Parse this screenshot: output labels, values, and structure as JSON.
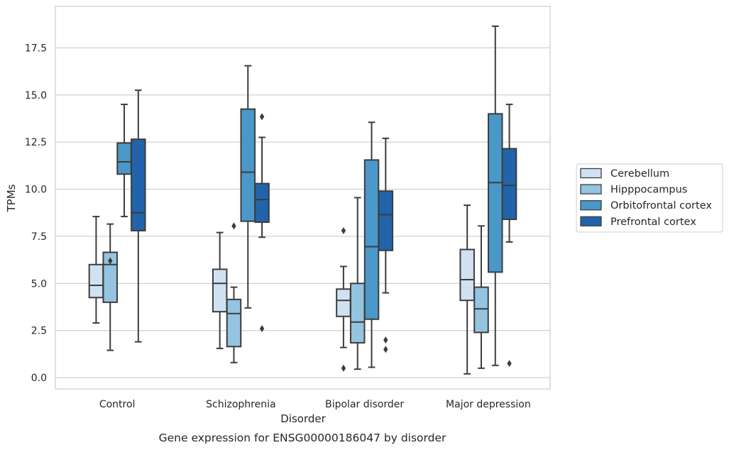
{
  "caption": "Gene expression for ENSG00000186047 by disorder",
  "chart_data": {
    "type": "box",
    "xlabel": "Disorder",
    "ylabel": "TPMs",
    "ylim": [
      -0.6,
      19.7
    ],
    "yticks": [
      0.0,
      2.5,
      5.0,
      7.5,
      10.0,
      12.5,
      15.0,
      17.5
    ],
    "ytick_labels": [
      "0.0",
      "2.5",
      "5.0",
      "7.5",
      "10.0",
      "12.5",
      "15.0",
      "17.5"
    ],
    "grid": "horizontal",
    "legend_position": "right",
    "categories": [
      "Control",
      "Schizophrenia",
      "Bipolar disorder",
      "Major depression"
    ],
    "series": [
      {
        "name": "Cerebellum",
        "color": "#d0e1f2",
        "boxes": [
          {
            "whisker_low": 2.9,
            "q1": 4.25,
            "median": 4.9,
            "q3": 6.0,
            "whisker_high": 8.55,
            "outliers": []
          },
          {
            "whisker_low": 1.55,
            "q1": 3.5,
            "median": 5.0,
            "q3": 5.75,
            "whisker_high": 7.7,
            "outliers": []
          },
          {
            "whisker_low": 1.6,
            "q1": 3.25,
            "median": 4.1,
            "q3": 4.7,
            "whisker_high": 5.9,
            "outliers": [
              0.5,
              7.8
            ]
          },
          {
            "whisker_low": 0.2,
            "q1": 4.1,
            "median": 5.2,
            "q3": 6.8,
            "whisker_high": 9.15,
            "outliers": []
          }
        ]
      },
      {
        "name": "Hipppocampus",
        "color": "#94c4df",
        "boxes": [
          {
            "whisker_low": 1.45,
            "q1": 4.0,
            "median": 6.0,
            "q3": 6.65,
            "whisker_high": 8.15,
            "outliers": [
              6.2
            ]
          },
          {
            "whisker_low": 0.8,
            "q1": 1.65,
            "median": 3.4,
            "q3": 4.15,
            "whisker_high": 4.8,
            "outliers": [
              8.05
            ]
          },
          {
            "whisker_low": 0.45,
            "q1": 1.85,
            "median": 2.95,
            "q3": 5.0,
            "whisker_high": 9.55,
            "outliers": []
          },
          {
            "whisker_low": 0.5,
            "q1": 2.4,
            "median": 3.65,
            "q3": 4.8,
            "whisker_high": 8.05,
            "outliers": []
          }
        ]
      },
      {
        "name": "Orbitofrontal cortex",
        "color": "#4a98c9",
        "boxes": [
          {
            "whisker_low": 8.55,
            "q1": 10.8,
            "median": 11.45,
            "q3": 12.45,
            "whisker_high": 14.5,
            "outliers": []
          },
          {
            "whisker_low": 3.7,
            "q1": 8.3,
            "median": 10.9,
            "q3": 14.25,
            "whisker_high": 16.55,
            "outliers": []
          },
          {
            "whisker_low": 0.55,
            "q1": 3.1,
            "median": 6.95,
            "q3": 11.55,
            "whisker_high": 13.55,
            "outliers": []
          },
          {
            "whisker_low": 0.65,
            "q1": 5.6,
            "median": 10.35,
            "q3": 14.0,
            "whisker_high": 18.65,
            "outliers": []
          }
        ]
      },
      {
        "name": "Prefrontal cortex",
        "color": "#2164ab",
        "boxes": [
          {
            "whisker_low": 1.9,
            "q1": 7.8,
            "median": 8.75,
            "q3": 12.65,
            "whisker_high": 15.25,
            "outliers": []
          },
          {
            "whisker_low": 7.45,
            "q1": 8.25,
            "median": 9.45,
            "q3": 10.3,
            "whisker_high": 12.75,
            "outliers": [
              2.6,
              13.85
            ]
          },
          {
            "whisker_low": 4.5,
            "q1": 6.75,
            "median": 8.65,
            "q3": 9.9,
            "whisker_high": 12.7,
            "outliers": [
              1.5,
              2.0
            ]
          },
          {
            "whisker_low": 7.2,
            "q1": 8.4,
            "median": 10.2,
            "q3": 12.15,
            "whisker_high": 14.5,
            "outliers": [
              0.75
            ]
          }
        ]
      }
    ]
  }
}
